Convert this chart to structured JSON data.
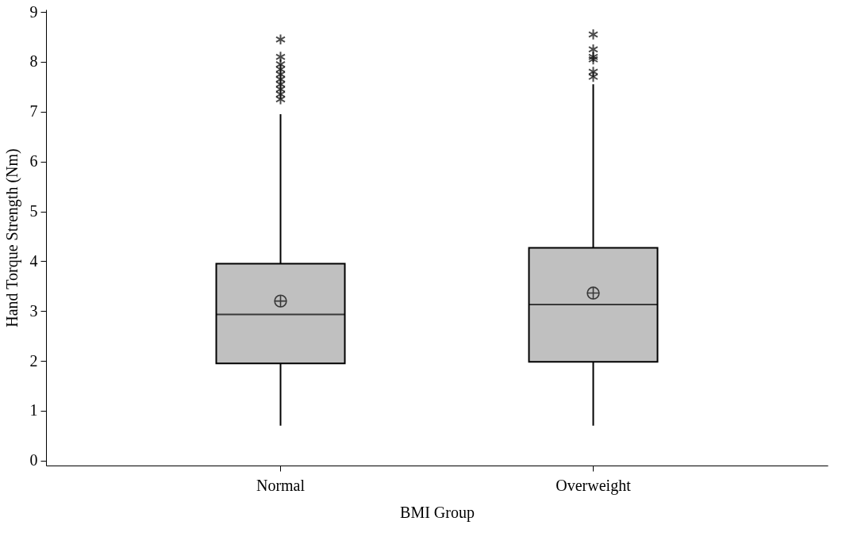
{
  "chart_data": {
    "type": "box",
    "xlabel": "BMI Group",
    "ylabel": "Hand Torque Strength (Nm)",
    "categories": [
      "Normal",
      "Overweight"
    ],
    "series": [
      {
        "color": "#c0c0c0",
        "boxes": [
          {
            "low": 0.7,
            "q1": 1.95,
            "median": 2.93,
            "q3": 3.95,
            "high": 6.95,
            "mean": 3.2,
            "outliers": [
              7.25,
              7.35,
              7.45,
              7.55,
              7.65,
              7.75,
              7.85,
              7.95,
              8.1,
              8.45
            ]
          },
          {
            "low": 0.7,
            "q1": 1.98,
            "median": 3.13,
            "q3": 4.27,
            "high": 7.55,
            "mean": 3.36,
            "outliers": [
              7.7,
              7.8,
              8.05,
              8.1,
              8.25,
              8.55
            ]
          }
        ]
      }
    ],
    "ylim": [
      -0.1,
      9.05
    ],
    "yticks": [
      0,
      1,
      2,
      3,
      4,
      5,
      6,
      7,
      8,
      9
    ],
    "grid": false
  }
}
